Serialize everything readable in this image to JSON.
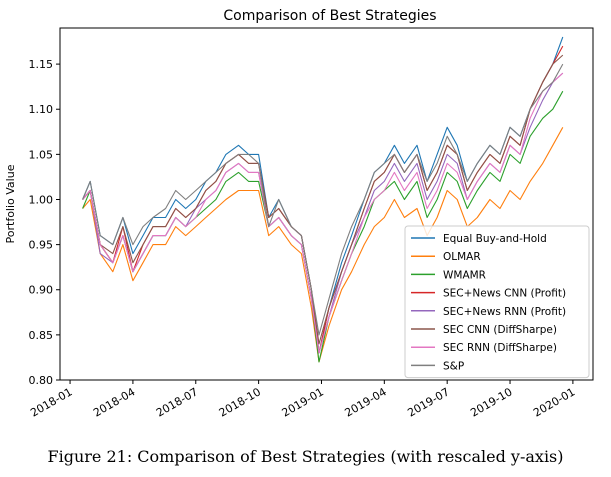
{
  "chart_data": {
    "type": "line",
    "title": "Comparison of Best Strategies",
    "xlabel": "",
    "ylabel": "Portfolio Value",
    "ylim": [
      0.8,
      1.19
    ],
    "xlim": [
      2017.96,
      2020.08
    ],
    "yticks": [
      0.8,
      0.85,
      0.9,
      0.95,
      1.0,
      1.05,
      1.1,
      1.15
    ],
    "ytick_labels": [
      "0.80",
      "0.85",
      "0.90",
      "0.95",
      "1.00",
      "1.05",
      "1.10",
      "1.15"
    ],
    "xticks": [
      2018.0,
      2018.25,
      2018.5,
      2018.75,
      2019.0,
      2019.25,
      2019.5,
      2019.75,
      2020.0
    ],
    "xtick_labels": [
      "2018-01",
      "2018-04",
      "2018-07",
      "2018-10",
      "2019-01",
      "2019-04",
      "2019-07",
      "2019-10",
      "2020-01"
    ],
    "legend_position": "lower-right",
    "grid": false,
    "x": [
      2018.05,
      2018.08,
      2018.12,
      2018.17,
      2018.21,
      2018.25,
      2018.29,
      2018.33,
      2018.38,
      2018.42,
      2018.46,
      2018.5,
      2018.54,
      2018.58,
      2018.62,
      2018.67,
      2018.71,
      2018.75,
      2018.79,
      2018.83,
      2018.88,
      2018.92,
      2018.96,
      2018.99,
      2019.03,
      2019.08,
      2019.12,
      2019.17,
      2019.21,
      2019.25,
      2019.29,
      2019.33,
      2019.38,
      2019.42,
      2019.46,
      2019.5,
      2019.54,
      2019.58,
      2019.62,
      2019.67,
      2019.71,
      2019.75,
      2019.79,
      2019.83,
      2019.88,
      2019.92,
      2019.96
    ],
    "series": [
      {
        "name": "Equal Buy-and-Hold",
        "color": "#1f77b4",
        "values": [
          1.0,
          1.02,
          0.96,
          0.95,
          0.98,
          0.94,
          0.96,
          0.98,
          0.98,
          1.0,
          0.99,
          1.0,
          1.02,
          1.03,
          1.05,
          1.06,
          1.05,
          1.05,
          0.98,
          1.0,
          0.97,
          0.96,
          0.9,
          0.83,
          0.88,
          0.93,
          0.96,
          1.0,
          1.03,
          1.04,
          1.06,
          1.04,
          1.06,
          1.02,
          1.05,
          1.08,
          1.06,
          1.02,
          1.04,
          1.06,
          1.05,
          1.08,
          1.07,
          1.1,
          1.13,
          1.15,
          1.18
        ]
      },
      {
        "name": "OLMAR",
        "color": "#ff7f0e",
        "values": [
          0.99,
          1.0,
          0.94,
          0.92,
          0.95,
          0.91,
          0.93,
          0.95,
          0.95,
          0.97,
          0.96,
          0.97,
          0.98,
          0.99,
          1.0,
          1.01,
          1.01,
          1.01,
          0.96,
          0.97,
          0.95,
          0.94,
          0.88,
          0.82,
          0.86,
          0.9,
          0.92,
          0.95,
          0.97,
          0.98,
          1.0,
          0.98,
          0.99,
          0.96,
          0.98,
          1.01,
          1.0,
          0.97,
          0.98,
          1.0,
          0.99,
          1.01,
          1.0,
          1.02,
          1.04,
          1.06,
          1.08
        ]
      },
      {
        "name": "WMAMR",
        "color": "#2ca02c",
        "values": [
          0.99,
          1.01,
          0.95,
          0.93,
          0.96,
          0.92,
          0.94,
          0.96,
          0.96,
          0.98,
          0.97,
          0.98,
          0.99,
          1.0,
          1.02,
          1.03,
          1.02,
          1.02,
          0.97,
          0.98,
          0.96,
          0.95,
          0.89,
          0.82,
          0.87,
          0.91,
          0.94,
          0.97,
          1.0,
          1.01,
          1.02,
          1.0,
          1.02,
          0.98,
          1.0,
          1.03,
          1.02,
          0.99,
          1.01,
          1.03,
          1.02,
          1.05,
          1.04,
          1.07,
          1.09,
          1.1,
          1.12
        ]
      },
      {
        "name": "SEC+News CNN (Profit)",
        "color": "#d62728",
        "values": [
          1.0,
          1.01,
          0.95,
          0.93,
          0.97,
          0.92,
          0.95,
          0.97,
          0.97,
          0.99,
          0.98,
          0.99,
          1.01,
          1.02,
          1.04,
          1.05,
          1.04,
          1.04,
          0.98,
          0.99,
          0.97,
          0.96,
          0.9,
          0.83,
          0.88,
          0.92,
          0.95,
          0.99,
          1.02,
          1.03,
          1.05,
          1.03,
          1.05,
          1.01,
          1.03,
          1.06,
          1.05,
          1.01,
          1.03,
          1.05,
          1.04,
          1.07,
          1.06,
          1.1,
          1.13,
          1.15,
          1.17
        ]
      },
      {
        "name": "SEC+News RNN (Profit)",
        "color": "#9467bd",
        "values": [
          1.0,
          1.01,
          0.94,
          0.93,
          0.96,
          0.92,
          0.94,
          0.96,
          0.96,
          0.98,
          0.97,
          0.99,
          1.0,
          1.01,
          1.03,
          1.04,
          1.03,
          1.03,
          0.97,
          0.98,
          0.96,
          0.95,
          0.89,
          0.83,
          0.87,
          0.92,
          0.95,
          0.98,
          1.01,
          1.02,
          1.04,
          1.02,
          1.04,
          1.0,
          1.02,
          1.05,
          1.04,
          1.0,
          1.02,
          1.04,
          1.03,
          1.06,
          1.05,
          1.08,
          1.11,
          1.13,
          1.14
        ]
      },
      {
        "name": "SEC CNN (DiffSharpe)",
        "color": "#8c564b",
        "values": [
          1.0,
          1.01,
          0.95,
          0.94,
          0.97,
          0.93,
          0.95,
          0.97,
          0.97,
          0.99,
          0.98,
          0.99,
          1.01,
          1.02,
          1.04,
          1.05,
          1.04,
          1.04,
          0.98,
          0.99,
          0.97,
          0.96,
          0.9,
          0.84,
          0.88,
          0.92,
          0.95,
          0.99,
          1.02,
          1.03,
          1.05,
          1.03,
          1.05,
          1.01,
          1.03,
          1.06,
          1.05,
          1.01,
          1.03,
          1.05,
          1.04,
          1.07,
          1.06,
          1.1,
          1.13,
          1.15,
          1.16
        ]
      },
      {
        "name": "SEC RNN (DiffSharpe)",
        "color": "#e377c2",
        "values": [
          1.0,
          1.01,
          0.95,
          0.93,
          0.96,
          0.92,
          0.94,
          0.96,
          0.96,
          0.98,
          0.97,
          0.98,
          1.0,
          1.01,
          1.03,
          1.04,
          1.03,
          1.03,
          0.97,
          0.98,
          0.96,
          0.95,
          0.89,
          0.83,
          0.87,
          0.91,
          0.94,
          0.98,
          1.0,
          1.01,
          1.03,
          1.01,
          1.03,
          0.99,
          1.01,
          1.04,
          1.03,
          1.0,
          1.02,
          1.04,
          1.03,
          1.06,
          1.05,
          1.09,
          1.12,
          1.13,
          1.14
        ]
      },
      {
        "name": "S&P",
        "color": "#7f7f7f",
        "values": [
          1.0,
          1.02,
          0.96,
          0.95,
          0.98,
          0.95,
          0.97,
          0.98,
          0.99,
          1.01,
          1.0,
          1.01,
          1.02,
          1.03,
          1.04,
          1.05,
          1.05,
          1.04,
          0.97,
          1.0,
          0.97,
          0.96,
          0.9,
          0.85,
          0.89,
          0.94,
          0.97,
          1.0,
          1.03,
          1.04,
          1.05,
          1.03,
          1.05,
          1.02,
          1.04,
          1.07,
          1.05,
          1.02,
          1.04,
          1.06,
          1.05,
          1.08,
          1.07,
          1.1,
          1.12,
          1.13,
          1.15
        ]
      }
    ]
  },
  "caption": "Figure 21: Comparison of Best Strategies (with rescaled y-axis)"
}
